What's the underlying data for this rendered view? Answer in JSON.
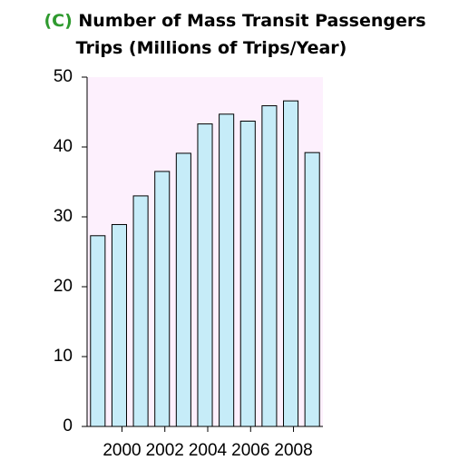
{
  "chart_data": {
    "type": "bar",
    "title_panel": "(C)",
    "title": [
      "Number of Mass Transit Passengers",
      "Trips (Millions of Trips/Year)"
    ],
    "categories": [
      null,
      "2000",
      null,
      "2002",
      null,
      "2004",
      null,
      "2006",
      null,
      "2008",
      null
    ],
    "values": [
      27.3,
      28.9,
      33.0,
      36.5,
      39.1,
      43.3,
      44.7,
      43.7,
      45.9,
      46.6,
      39.2
    ],
    "color": "#c6ecf8",
    "plot_background": "#fdf0fd",
    "ylim": [
      0,
      50
    ],
    "yticks": [
      0,
      10,
      20,
      30,
      40,
      50
    ],
    "grid": false
  }
}
